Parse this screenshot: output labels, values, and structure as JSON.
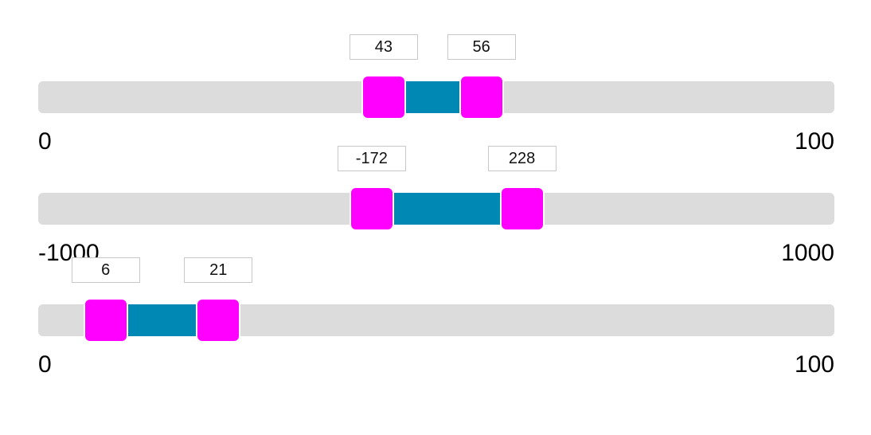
{
  "colors": {
    "track": "#dcdcdc",
    "range": "#0088b5",
    "handle": "#ff00ff",
    "box_border": "#c8c8c8"
  },
  "sliders": [
    {
      "min": 0,
      "max": 100,
      "low": 43,
      "high": 56,
      "min_label": "0",
      "max_label": "100",
      "low_label": "43",
      "high_label": "56"
    },
    {
      "min": -1000,
      "max": 1000,
      "low": -172,
      "high": 228,
      "min_label": "-1000",
      "max_label": "1000",
      "low_label": "-172",
      "high_label": "228"
    },
    {
      "min": 0,
      "max": 100,
      "low": 6,
      "high": 21,
      "min_label": "0",
      "max_label": "100",
      "low_label": "6",
      "high_label": "21"
    }
  ]
}
